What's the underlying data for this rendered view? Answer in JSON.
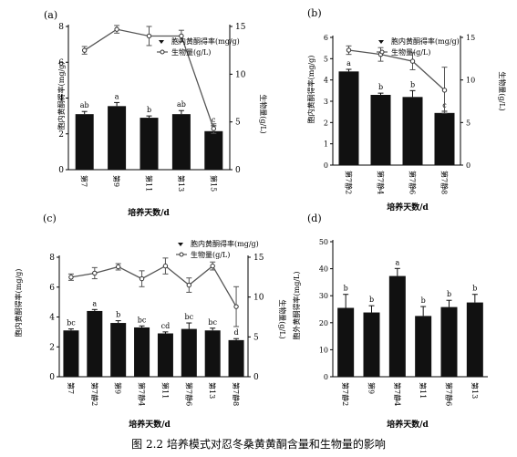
{
  "caption": "图 2.2 培养模式对忍冬桑黄黄酮含量和生物量的影响",
  "chart_data": [
    {
      "panel": "(a)",
      "type": "bar",
      "categories": [
        "第7",
        "第9",
        "第11",
        "第13",
        "第15"
      ],
      "xlabel": "培养天数/d",
      "ylabel": "胞内黄酮得率(mg/g)",
      "y2label": "生物量(g/L)",
      "ylim": [
        0,
        8
      ],
      "y2lim": [
        0,
        15
      ],
      "yticks": [
        "0",
        "2",
        "4",
        "6",
        "8"
      ],
      "y2ticks": [
        "0",
        "5",
        "10",
        "15"
      ],
      "legend": [
        "胞内黄酮得率(mg/g)",
        "生物量(g/L)"
      ],
      "series": [
        {
          "name": "胞内黄酮得率(mg/g)",
          "kind": "bar",
          "values": [
            3.1,
            3.55,
            2.9,
            3.1,
            2.15
          ],
          "errors": [
            0.15,
            0.2,
            0.1,
            0.2,
            0.3
          ],
          "letters": [
            "ab",
            "a",
            "b",
            "ab",
            "c"
          ]
        },
        {
          "name": "生物量(g/L)",
          "kind": "line",
          "values": [
            12.5,
            14.7,
            14.0,
            14.0,
            4.3
          ],
          "errors": [
            0.4,
            0.4,
            1.0,
            0.6,
            0.5
          ]
        }
      ]
    },
    {
      "panel": "(b)",
      "type": "bar",
      "categories": [
        "第7静2",
        "第7静4",
        "第7静6",
        "第7静8"
      ],
      "xlabel": "培养天数/d",
      "ylabel": "胞内黄酮得率(mg/g)",
      "y2label": "生物量(g/L)",
      "ylim": [
        0,
        6
      ],
      "y2lim": [
        0,
        15
      ],
      "yticks": [
        "0",
        "1",
        "2",
        "3",
        "4",
        "5",
        "6"
      ],
      "y2ticks": [
        "0",
        "5",
        "10",
        "15"
      ],
      "legend": [
        "胞内黄酮得率(mg/g)",
        "生物量(g/L)"
      ],
      "series": [
        {
          "name": "胞内黄酮得率(mg/g)",
          "kind": "bar",
          "values": [
            4.4,
            3.3,
            3.2,
            2.45
          ],
          "errors": [
            0.1,
            0.08,
            0.3,
            0.08
          ],
          "letters": [
            "a",
            "b",
            "b",
            "c"
          ]
        },
        {
          "name": "生物量(g/L)",
          "kind": "line",
          "values": [
            13.5,
            13.0,
            12.2,
            8.8
          ],
          "errors": [
            0.5,
            0.8,
            1.0,
            2.7
          ]
        }
      ]
    },
    {
      "panel": "(c)",
      "type": "bar",
      "categories": [
        "第7",
        "第7静2",
        "第9",
        "第7静4",
        "第11",
        "第7静6",
        "第13",
        "第7静8"
      ],
      "xlabel": "培养天数/d",
      "ylabel": "胞内黄酮得率(mg/g)",
      "y2label": "生物量(g/L)",
      "ylim": [
        0,
        8
      ],
      "y2lim": [
        0,
        15
      ],
      "yticks": [
        "0",
        "2",
        "4",
        "6",
        "8"
      ],
      "y2ticks": [
        "0",
        "5",
        "10",
        "15"
      ],
      "legend": [
        "胞内黄酮得率(mg/g)",
        "生物量(g/L)"
      ],
      "series": [
        {
          "name": "胞内黄酮得率(mg/g)",
          "kind": "bar",
          "values": [
            3.1,
            4.4,
            3.6,
            3.3,
            2.9,
            3.2,
            3.1,
            2.45
          ],
          "errors": [
            0.1,
            0.1,
            0.15,
            0.1,
            0.1,
            0.4,
            0.15,
            0.1
          ],
          "letters": [
            "bc",
            "a",
            "b",
            "bc",
            "cd",
            "bc",
            "bc",
            "d"
          ]
        },
        {
          "name": "生物量(g/L)",
          "kind": "line",
          "values": [
            12.5,
            13.0,
            13.8,
            12.3,
            13.9,
            11.5,
            13.9,
            8.8
          ],
          "errors": [
            0.4,
            0.7,
            0.4,
            1.0,
            1.0,
            0.9,
            0.5,
            2.5
          ]
        }
      ]
    },
    {
      "panel": "(d)",
      "type": "bar",
      "categories": [
        "第7静2",
        "第9",
        "第7静4",
        "第11",
        "第7静6",
        "第13"
      ],
      "xlabel": "培养天数/d",
      "ylabel": "胞外黄酮得率(mg/L)",
      "ylim": [
        0,
        50
      ],
      "yticks": [
        "0",
        "10",
        "20",
        "30",
        "40",
        "50"
      ],
      "series": [
        {
          "name": "胞外黄酮得率(mg/L)",
          "kind": "bar",
          "values": [
            25.5,
            23.8,
            37.3,
            22.5,
            25.8,
            27.5
          ],
          "errors": [
            5.0,
            2.5,
            2.8,
            3.5,
            2.5,
            3.0
          ],
          "letters": [
            "b",
            "b",
            "a",
            "b",
            "b",
            "b"
          ]
        }
      ]
    }
  ]
}
